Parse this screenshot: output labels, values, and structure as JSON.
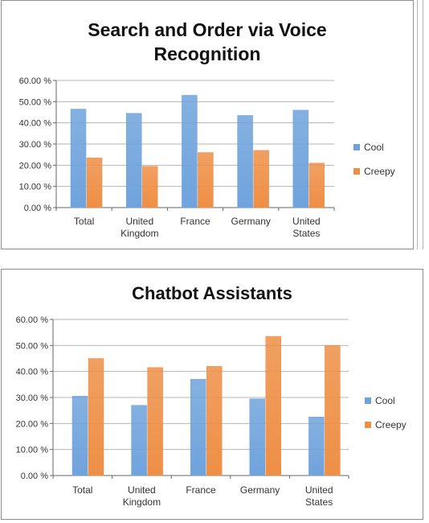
{
  "colors": {
    "cool": "#6fa3dc",
    "creepy": "#ee8f46",
    "grid": "#b4b4b4",
    "axis": "#666666"
  },
  "chart_data": [
    {
      "type": "bar",
      "title_lines": [
        "Search and Order via Voice",
        "Recognition"
      ],
      "categories": [
        [
          "Total"
        ],
        [
          "United",
          "Kingdom"
        ],
        [
          "France"
        ],
        [
          "Germany"
        ],
        [
          "United",
          "States"
        ]
      ],
      "series": [
        {
          "name": "Cool",
          "values": [
            46.5,
            44.5,
            53.0,
            43.5,
            46.0
          ]
        },
        {
          "name": "Creepy",
          "values": [
            23.5,
            19.5,
            26.0,
            27.0,
            21.0
          ]
        }
      ],
      "ylim": [
        0,
        60
      ],
      "yticks": [
        "0.00 %",
        "10.00 %",
        "20.00 %",
        "30.00 %",
        "40.00 %",
        "50.00 %",
        "60.00 %"
      ],
      "grid": true,
      "legend_position": "right"
    },
    {
      "type": "bar",
      "title_lines": [
        "Chatbot Assistants"
      ],
      "categories": [
        [
          "Total"
        ],
        [
          "United",
          "Kingdom"
        ],
        [
          "France"
        ],
        [
          "Germany"
        ],
        [
          "United",
          "States"
        ]
      ],
      "series": [
        {
          "name": "Cool",
          "values": [
            30.5,
            27.0,
            37.0,
            29.5,
            22.5
          ]
        },
        {
          "name": "Creepy",
          "values": [
            45.0,
            41.5,
            42.0,
            53.5,
            50.0
          ]
        }
      ],
      "ylim": [
        0,
        60
      ],
      "yticks": [
        "0.00 %",
        "10.00 %",
        "20.00 %",
        "30.00 %",
        "40.00 %",
        "50.00 %",
        "60.00 %"
      ],
      "grid": true,
      "legend_position": "right"
    }
  ]
}
